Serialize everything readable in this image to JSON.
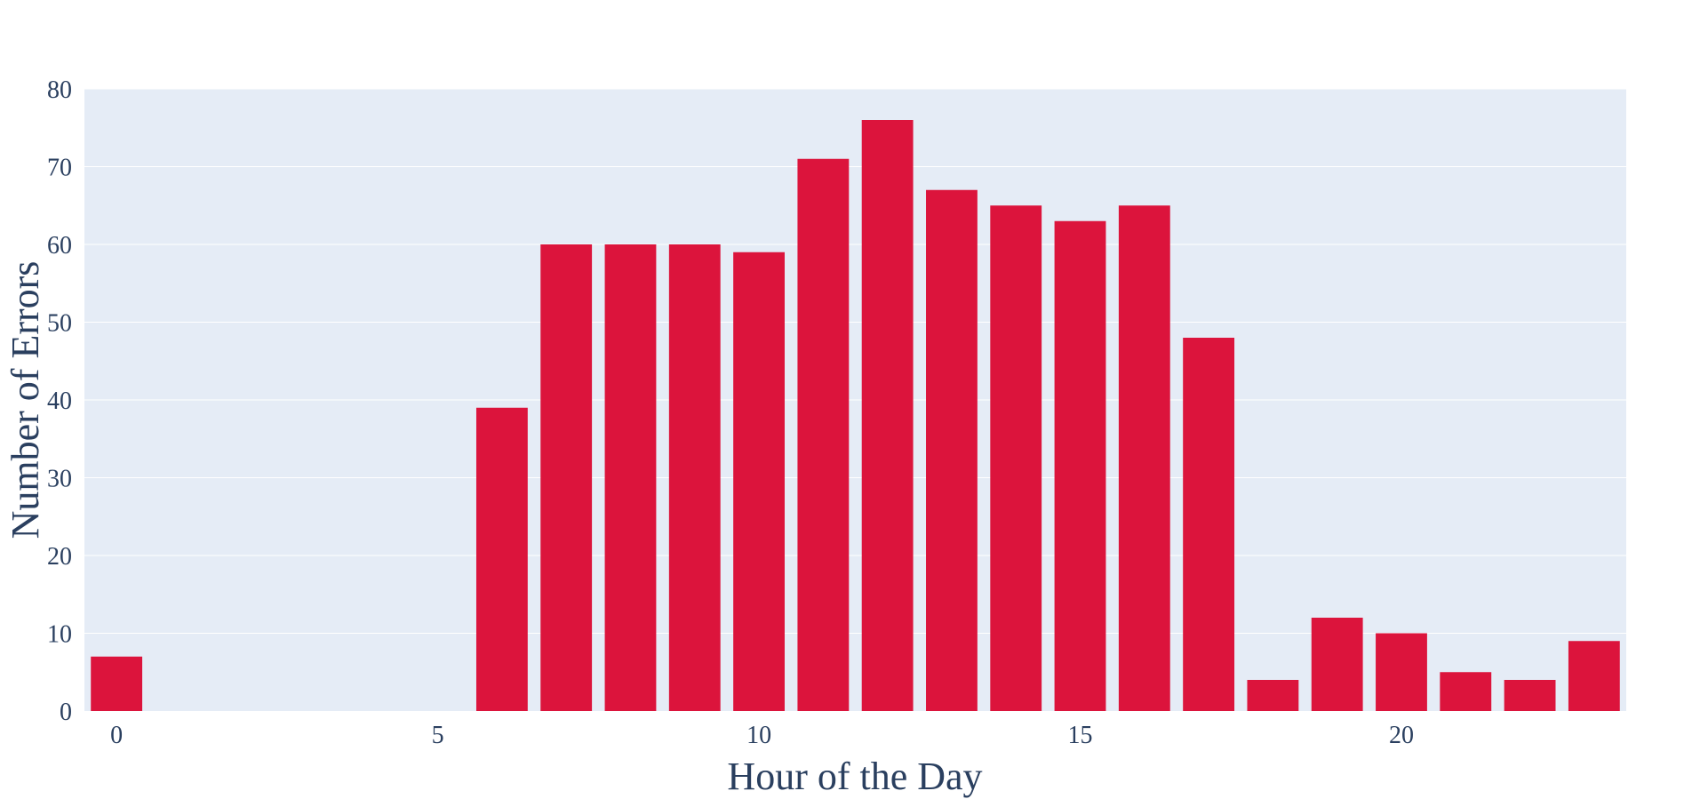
{
  "chart_data": {
    "type": "bar",
    "title": "",
    "xlabel": "Hour of the Day",
    "ylabel": "Number of Errors",
    "x": [
      0,
      1,
      2,
      3,
      4,
      5,
      6,
      7,
      8,
      9,
      10,
      11,
      12,
      13,
      14,
      15,
      16,
      17,
      18,
      19,
      20,
      21,
      22,
      23
    ],
    "values": [
      7,
      0,
      0,
      0,
      0,
      0,
      39,
      60,
      60,
      60,
      59,
      71,
      76,
      67,
      65,
      63,
      65,
      48,
      4,
      12,
      10,
      5,
      4,
      9
    ],
    "xlim": [
      -0.5,
      23.5
    ],
    "ylim": [
      0,
      80
    ],
    "xticks": [
      0,
      5,
      10,
      15,
      20
    ],
    "yticks": [
      0,
      10,
      20,
      30,
      40,
      50,
      60,
      70,
      80
    ],
    "grid": true,
    "legend": "none",
    "colors": {
      "bar": "#dc143c",
      "plot_background": "#e5ecf6",
      "grid": "#ffffff",
      "text": "#2a3f5f"
    }
  }
}
